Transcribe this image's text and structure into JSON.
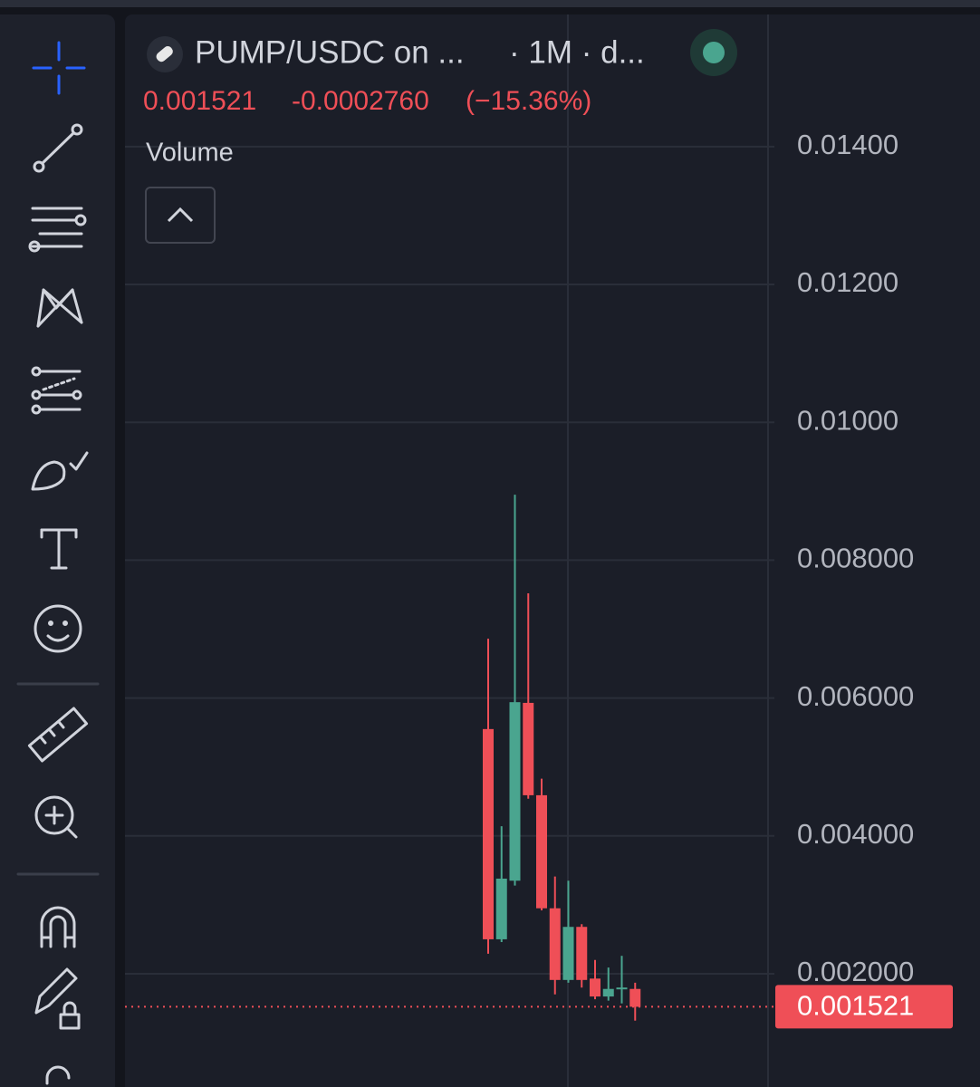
{
  "header": {
    "symbol": "PUMP/USDC on ...",
    "interval": "· 1M · d...",
    "change": "-0.0002760",
    "change_pct": "(−15.36%)",
    "indicator": "Volume"
  },
  "chart_data": {
    "type": "candlestick",
    "open": [
      0.00555,
      0.0025,
      0.00335,
      0.00593,
      0.00459,
      0.00295,
      0.00191,
      0.00268,
      0.00193,
      0.00167,
      0.00178,
      0.00178
    ],
    "high": [
      0.00686,
      0.00414,
      0.00895,
      0.00752,
      0.00483,
      0.00341,
      0.00335,
      0.00272,
      0.0022,
      0.00209,
      0.00226,
      0.00187
    ],
    "low": [
      0.00229,
      0.00246,
      0.00328,
      0.00454,
      0.00292,
      0.0017,
      0.00187,
      0.0018,
      0.00163,
      0.00161,
      0.00157,
      0.00132
    ],
    "close": [
      0.0025,
      0.00338,
      0.00594,
      0.00459,
      0.00295,
      0.00191,
      0.00268,
      0.00191,
      0.00167,
      0.00178,
      0.0018,
      0.001521
    ],
    "up_color": "#4aa58f",
    "down_color": "#ef4f57",
    "ylim": [
      0.000357,
      0.01593
    ],
    "yticks": [
      {
        "value": 0.002,
        "label": "0.002000"
      },
      {
        "value": 0.004,
        "label": "0.004000"
      },
      {
        "value": 0.006,
        "label": "0.006000"
      },
      {
        "value": 0.008,
        "label": "0.008000"
      },
      {
        "value": 0.01,
        "label": "0.01000"
      },
      {
        "value": 0.012,
        "label": "0.01200"
      },
      {
        "value": 0.014,
        "label": "0.01400"
      }
    ],
    "grid": true
  }
}
